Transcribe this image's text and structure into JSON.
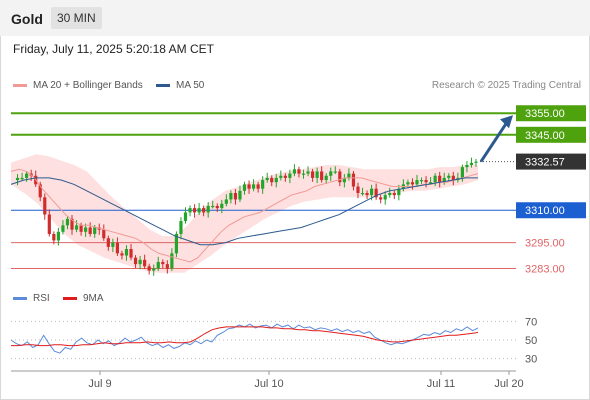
{
  "header": {
    "symbol": "Gold",
    "timeframe": "30 MIN"
  },
  "timestamp": "Friday, July 11, 2025 5:20:18 AM CET",
  "credit": "Research © 2025 Trading Central",
  "colors": {
    "target": "#4ea20e",
    "pivot": "#1c5fd1",
    "support": "#e06464",
    "current": "#333333",
    "bullish": "#22a52a",
    "bearish": "#cf2d2d",
    "bb_fill": "#fde0df",
    "ma20": "#f19a96",
    "ma50": "#2c5a8f",
    "rsi": "#5b8bd9",
    "rsi_ma": "#e01c1c",
    "arrow": "#2c5a8f"
  },
  "chart_data": [
    {
      "type": "candlestick",
      "title": "Gold",
      "legend": [
        {
          "name": "MA 20 + Bollinger Bands",
          "color": "#f19a96"
        },
        {
          "name": "MA 50",
          "color": "#2c5a8f"
        }
      ],
      "ylim": [
        3273,
        3363
      ],
      "x_ticks": [
        "Jul 9",
        "Jul 10",
        "Jul 11",
        "Jul 20"
      ],
      "levels": [
        {
          "label": "3355.00",
          "value": 3355.0,
          "kind": "target"
        },
        {
          "label": "3345.00",
          "value": 3345.0,
          "kind": "target"
        },
        {
          "label": "3332.57",
          "value": 3332.57,
          "kind": "current"
        },
        {
          "label": "3310.00",
          "value": 3310.0,
          "kind": "pivot"
        },
        {
          "label": "3295.00",
          "value": 3295.0,
          "kind": "support"
        },
        {
          "label": "3283.00",
          "value": 3283.0,
          "kind": "support"
        }
      ],
      "price_path": [
        3324,
        3325,
        3325,
        3327,
        3326,
        3322,
        3316,
        3308,
        3299,
        3296,
        3300,
        3303,
        3306,
        3301,
        3303,
        3300,
        3302,
        3299,
        3302,
        3301,
        3297,
        3293,
        3295,
        3290,
        3289,
        3292,
        3288,
        3285,
        3287,
        3284,
        3282,
        3283,
        3286,
        3285,
        3283,
        3290,
        3299,
        3305,
        3309,
        3311,
        3309,
        3311,
        3309,
        3312,
        3312,
        3311,
        3313,
        3315,
        3318,
        3315,
        3319,
        3322,
        3320,
        3322,
        3320,
        3324,
        3325,
        3323,
        3325,
        3326,
        3325,
        3327,
        3329,
        3327,
        3327,
        3328,
        3325,
        3328,
        3324,
        3326,
        3328,
        3328,
        3323,
        3325,
        3327,
        3321,
        3318,
        3318,
        3317,
        3320,
        3316,
        3315,
        3317,
        3318,
        3317,
        3320,
        3322,
        3323,
        3322,
        3324,
        3324,
        3323,
        3323,
        3326,
        3323,
        3325,
        3326,
        3324,
        3325,
        3330,
        3331,
        3332,
        3332.57
      ],
      "ma20": [
        3328,
        3329,
        3328,
        3325,
        3320,
        3316,
        3312,
        3308,
        3305,
        3303,
        3303,
        3302,
        3301,
        3300,
        3299,
        3298,
        3297,
        3295,
        3292,
        3290,
        3289,
        3288,
        3287,
        3286,
        3288,
        3292,
        3296,
        3300,
        3303,
        3305,
        3307,
        3308,
        3309,
        3311,
        3313,
        3315,
        3317,
        3318,
        3319,
        3321,
        3322,
        3323,
        3324,
        3325,
        3325,
        3325,
        3324,
        3323,
        3322,
        3321,
        3321,
        3321,
        3321,
        3322,
        3322,
        3323,
        3323,
        3324,
        3325,
        3326,
        3327
      ],
      "ma50": [
        3322,
        3324,
        3325,
        3325,
        3324,
        3322,
        3319,
        3316,
        3313,
        3310,
        3307,
        3304,
        3301,
        3298,
        3296,
        3294,
        3294,
        3295,
        3297,
        3298,
        3299,
        3300,
        3301,
        3302,
        3304,
        3306,
        3308,
        3311,
        3314,
        3317,
        3319,
        3320,
        3321,
        3322,
        3323,
        3324,
        3325,
        3325
      ],
      "bb_upper": [
        3332,
        3334,
        3336,
        3335,
        3333,
        3331,
        3328,
        3322,
        3316,
        3311,
        3306,
        3301,
        3298,
        3298,
        3303,
        3310,
        3315,
        3319,
        3321,
        3323,
        3325,
        3327,
        3328,
        3329,
        3330,
        3331,
        3331,
        3330,
        3329,
        3329,
        3329,
        3329,
        3329,
        3329,
        3330,
        3330,
        3331,
        3331
      ],
      "bb_lower": [
        3322,
        3318,
        3313,
        3306,
        3299,
        3294,
        3291,
        3288,
        3286,
        3284,
        3282,
        3281,
        3281,
        3281,
        3285,
        3289,
        3294,
        3298,
        3302,
        3306,
        3309,
        3312,
        3314,
        3315,
        3316,
        3316,
        3316,
        3316,
        3317,
        3318,
        3319,
        3319,
        3320,
        3321,
        3322,
        3324
      ]
    },
    {
      "type": "line",
      "title": "RSI",
      "legend": [
        {
          "name": "RSI",
          "color": "#5b8bd9"
        },
        {
          "name": "9MA",
          "color": "#e01c1c"
        }
      ],
      "ylim": [
        20,
        80
      ],
      "y_ticks": [
        "70",
        "50",
        "30"
      ],
      "rsi": [
        50,
        46,
        44,
        48,
        42,
        45,
        55,
        46,
        38,
        36,
        42,
        40,
        48,
        52,
        47,
        45,
        50,
        46,
        49,
        44,
        47,
        52,
        48,
        50,
        53,
        47,
        44,
        46,
        42,
        45,
        41,
        43,
        47,
        45,
        49,
        46,
        50,
        48,
        55,
        58,
        62,
        63,
        66,
        64,
        67,
        63,
        65,
        66,
        63,
        67,
        64,
        66,
        62,
        66,
        63,
        64,
        61,
        63,
        62,
        60,
        62,
        59,
        61,
        58,
        60,
        57,
        59,
        53,
        50,
        47,
        45,
        47,
        46,
        48,
        50,
        53,
        56,
        55,
        58,
        56,
        60,
        58,
        62,
        60,
        64,
        60,
        63
      ],
      "rsi_ma": [
        44,
        44,
        45,
        45,
        44,
        44,
        45,
        45,
        44,
        44,
        45,
        45,
        46,
        47,
        46,
        46,
        47,
        47,
        47,
        48,
        47,
        47,
        48,
        47,
        47,
        48,
        52,
        57,
        61,
        63,
        64,
        64,
        64,
        64,
        64,
        64,
        63,
        63,
        62,
        62,
        61,
        61,
        60,
        60,
        59,
        58,
        57,
        56,
        55,
        54,
        52,
        50,
        49,
        48,
        48,
        49,
        50,
        51,
        52,
        53,
        54,
        55,
        55,
        56,
        57,
        58
      ]
    }
  ]
}
